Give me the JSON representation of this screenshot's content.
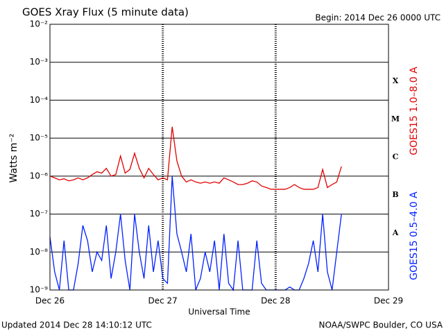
{
  "chart_data": {
    "type": "line",
    "title": "GOES Xray Flux (5 minute data)",
    "subtitle": "Begin:  2014 Dec 26 0000 UTC",
    "ylabel": "Watts m⁻²",
    "xlabel": "Universal Time",
    "footer_left": "Updated 2014 Dec 28 14:10:12 UTC",
    "footer_right": "NOAA/SWPC Boulder, CO USA",
    "flare_classes": [
      "A",
      "B",
      "C",
      "M",
      "X"
    ],
    "yscale": "log",
    "grid": true,
    "ylim": [
      1e-09,
      0.01
    ],
    "yticks": [
      {
        "value": 1e-09,
        "label": "10⁻⁹"
      },
      {
        "value": 1e-08,
        "label": "10⁻⁸"
      },
      {
        "value": 1e-07,
        "label": "10⁻⁷"
      },
      {
        "value": 1e-06,
        "label": "10⁻⁶"
      },
      {
        "value": 1e-05,
        "label": "10⁻⁵"
      },
      {
        "value": 0.0001,
        "label": "10⁻⁴"
      },
      {
        "value": 0.001,
        "label": "10⁻³"
      },
      {
        "value": 0.01,
        "label": "10⁻²"
      }
    ],
    "xlim": [
      0,
      72
    ],
    "xticks": [
      {
        "value": 0,
        "label": "Dec 26"
      },
      {
        "value": 24,
        "label": "Dec 27"
      },
      {
        "value": 48,
        "label": "Dec 28"
      },
      {
        "value": 72,
        "label": "Dec 29"
      }
    ],
    "x": [
      0,
      1,
      2,
      3,
      4,
      5,
      6,
      7,
      8,
      9,
      10,
      11,
      12,
      13,
      14,
      15,
      16,
      17,
      18,
      19,
      20,
      21,
      22,
      23,
      24,
      25,
      26,
      27,
      28,
      29,
      30,
      31,
      32,
      33,
      34,
      35,
      36,
      37,
      38,
      39,
      40,
      41,
      42,
      43,
      44,
      45,
      46,
      47,
      48,
      49,
      50,
      51,
      52,
      53,
      54,
      55,
      56,
      57,
      58,
      59,
      60,
      61,
      62
    ],
    "series": [
      {
        "name": "GOES15 1.0–8.0 A",
        "color": "#e00000",
        "values": [
          1e-06,
          9e-07,
          8e-07,
          8.5e-07,
          7.5e-07,
          8e-07,
          9e-07,
          8e-07,
          9e-07,
          1.1e-06,
          1.3e-06,
          1.2e-06,
          1.6e-06,
          1e-06,
          1.1e-06,
          3.4e-06,
          1.2e-06,
          1.5e-06,
          4e-06,
          1.6e-06,
          9e-07,
          1.6e-06,
          1.1e-06,
          8e-07,
          9e-07,
          8e-07,
          2e-05,
          2.5e-06,
          1e-06,
          7e-07,
          8e-07,
          7e-07,
          6.5e-07,
          7e-07,
          6.5e-07,
          7e-07,
          6.5e-07,
          9e-07,
          8e-07,
          7e-07,
          6e-07,
          6e-07,
          6.5e-07,
          7.5e-07,
          7e-07,
          5.5e-07,
          5e-07,
          4.5e-07,
          4.5e-07,
          4.5e-07,
          4.5e-07,
          5e-07,
          6e-07,
          5e-07,
          4.5e-07,
          4.5e-07,
          4.5e-07,
          5e-07,
          1.5e-06,
          5e-07,
          6e-07,
          7e-07,
          1.8e-06
        ]
      },
      {
        "name": "GOES15 0.5–4.0 A",
        "color": "#0020ff",
        "values": [
          2.5e-08,
          3e-09,
          1e-09,
          2e-08,
          1e-09,
          1e-09,
          5e-09,
          5e-08,
          2e-08,
          3e-09,
          1e-08,
          6e-09,
          5e-08,
          2e-09,
          1e-08,
          1e-07,
          6e-09,
          1e-09,
          1e-07,
          1e-08,
          2e-09,
          5e-08,
          3e-09,
          2e-08,
          2e-09,
          1.5e-09,
          1e-06,
          3e-08,
          1e-08,
          3e-09,
          3e-08,
          1e-09,
          2e-09,
          1e-08,
          3e-09,
          2e-08,
          1e-09,
          3e-08,
          1.5e-09,
          1e-09,
          2e-08,
          1e-09,
          1e-09,
          1e-09,
          2e-08,
          1.5e-09,
          1e-09,
          1e-09,
          1e-09,
          1e-09,
          1e-09,
          1.2e-09,
          1e-09,
          1e-09,
          2e-09,
          5e-09,
          2e-08,
          3e-09,
          1e-07,
          3e-09,
          1e-09,
          1e-08,
          1e-07
        ]
      }
    ]
  }
}
